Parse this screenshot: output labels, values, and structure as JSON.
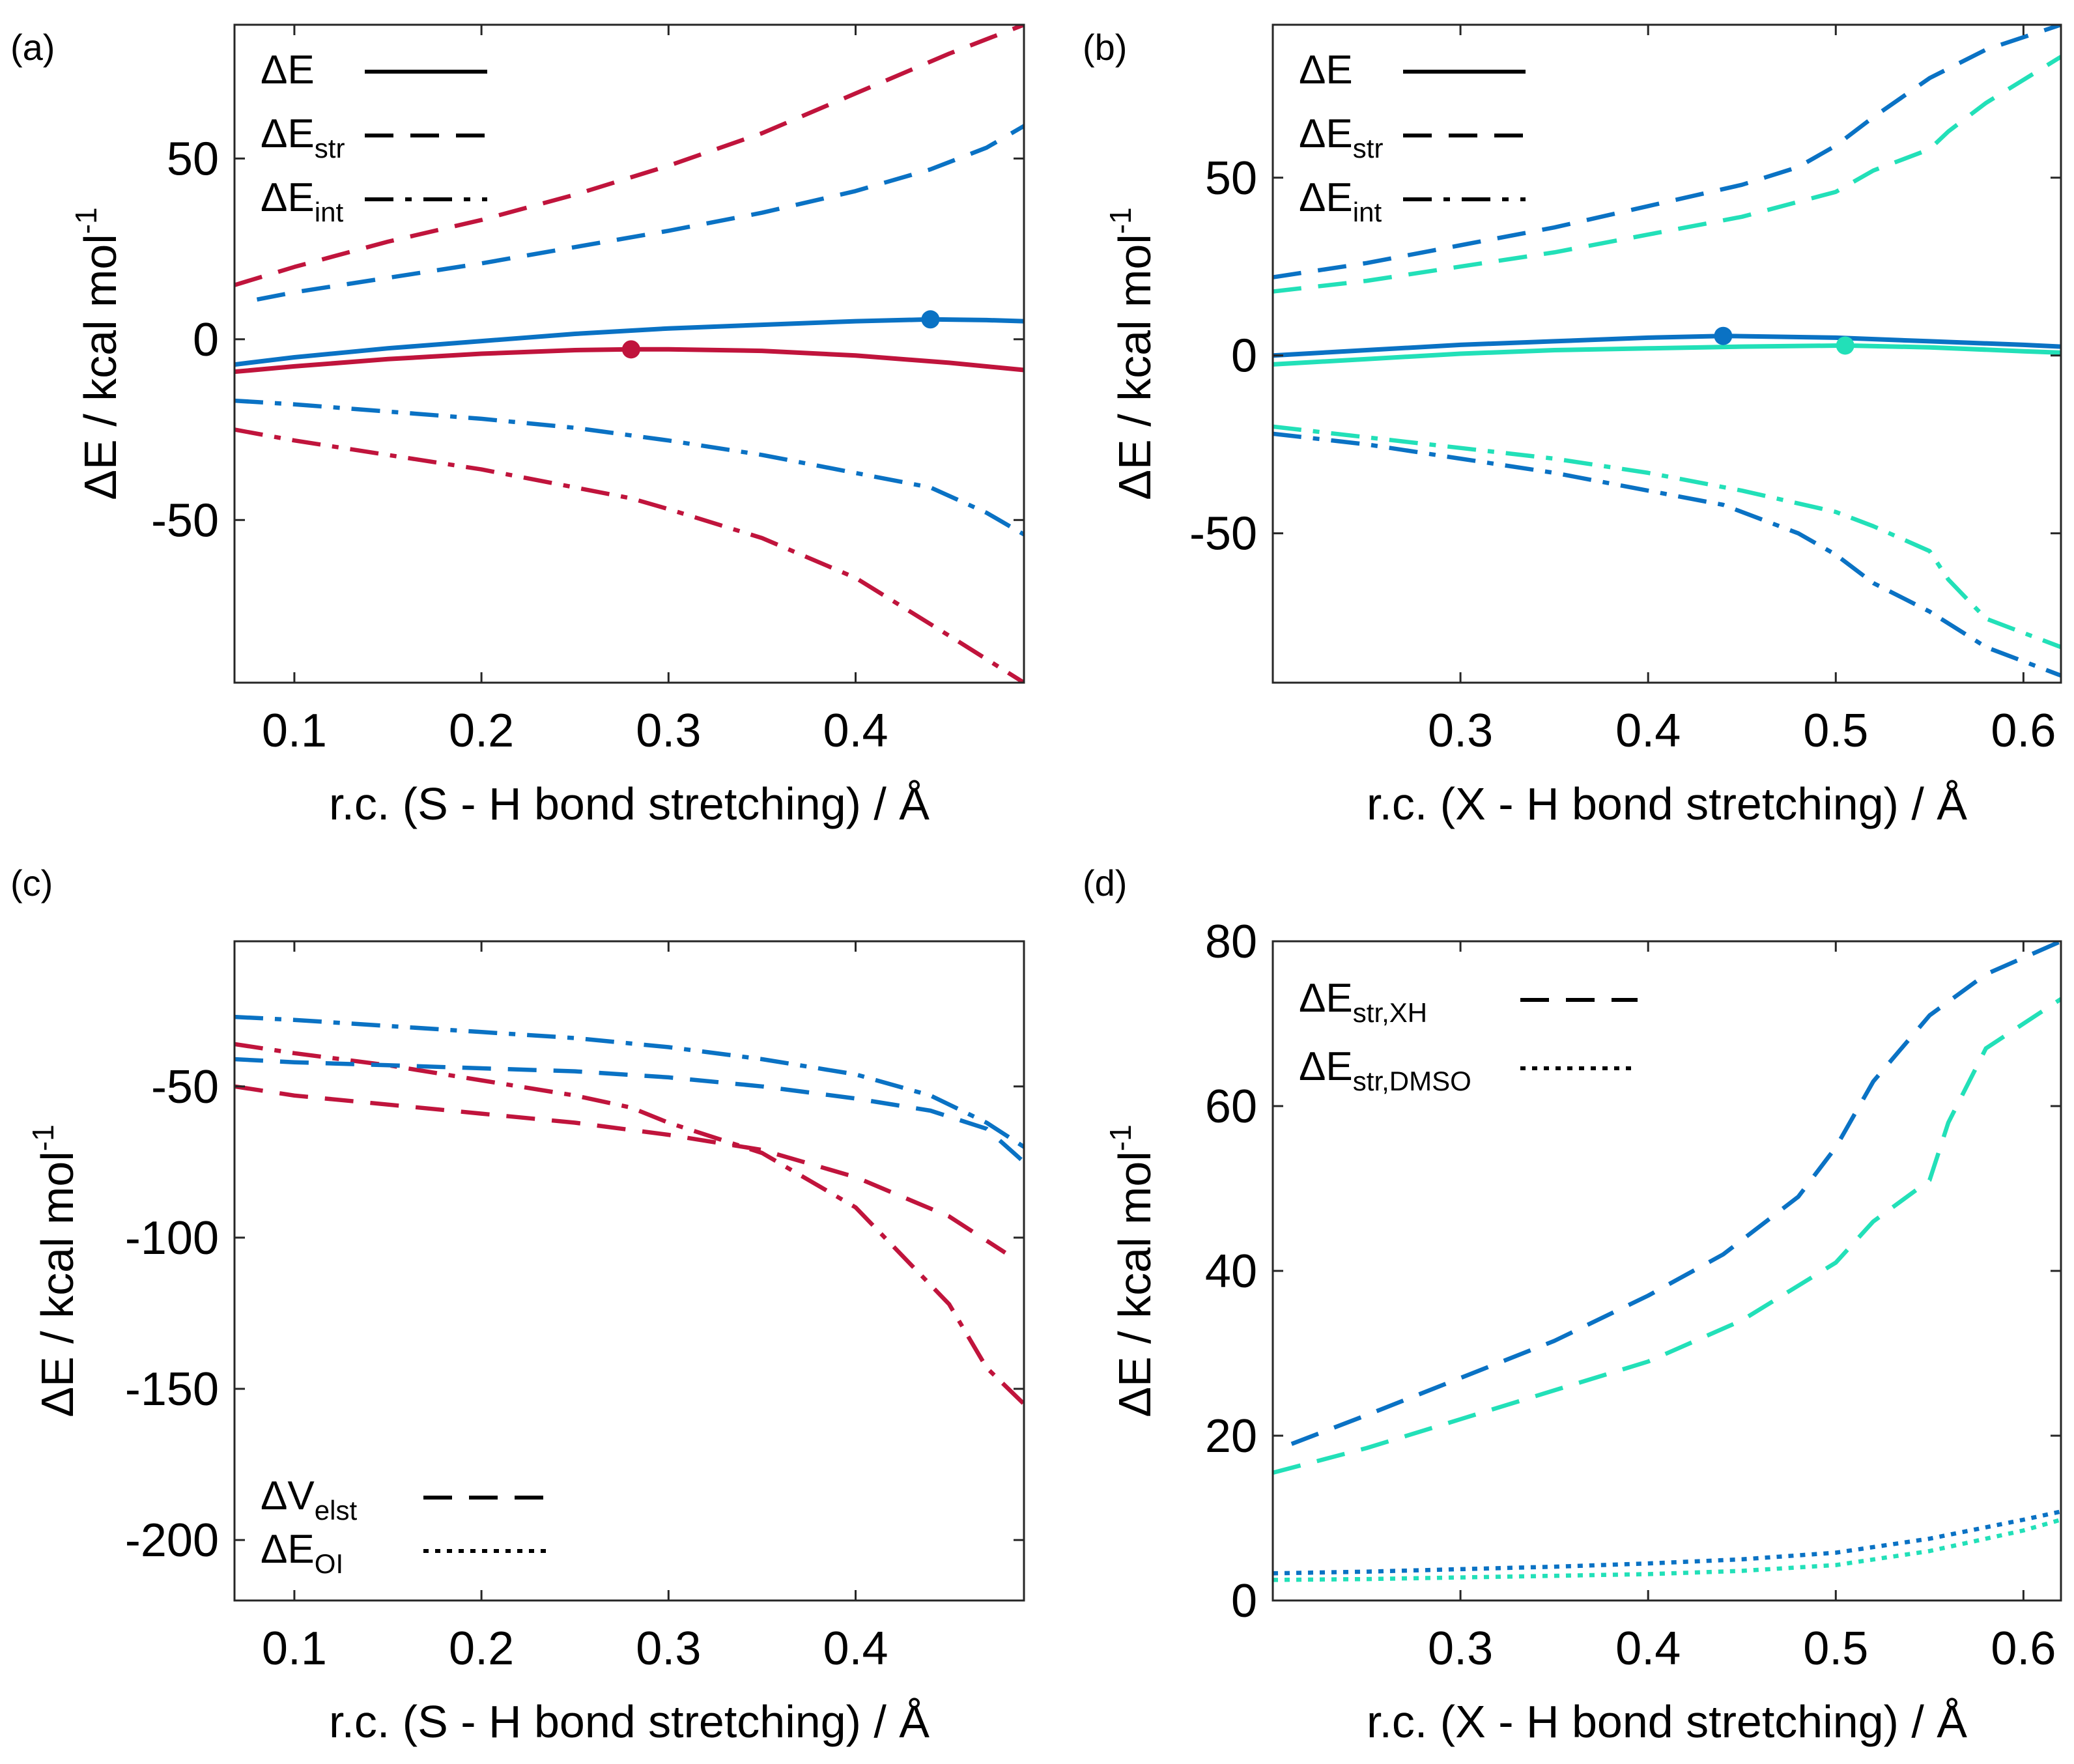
{
  "colors": {
    "red": "#C0143C",
    "blue": "#0A72C4",
    "cyan": "#22E0B8",
    "legend": "#000000",
    "axis": "#262626"
  },
  "chart_data": [
    {
      "id": "a",
      "panel_label": "(a)",
      "type": "line",
      "xlabel": "r.c. (S - H bond stretching) / Å",
      "ylabel": "ΔE / kcal mol",
      "ylabel_sup": "-1",
      "xlim": [
        0.068,
        0.49
      ],
      "ylim": [
        -95,
        87
      ],
      "xticks": [
        0.1,
        0.2,
        0.3,
        0.4
      ],
      "xtick_labels": [
        "0.1",
        "0.2",
        "0.3",
        "0.4"
      ],
      "yticks": [
        -50,
        0,
        50
      ],
      "ytick_labels": [
        "-50",
        "0",
        "50"
      ],
      "legend": {
        "position": "top-left",
        "entries": [
          {
            "main": "ΔE",
            "sub": "",
            "style": "solid"
          },
          {
            "main": "ΔE",
            "sub": "str",
            "style": "dashed"
          },
          {
            "main": "ΔE",
            "sub": "int",
            "style": "dashdot"
          }
        ]
      },
      "series": [
        {
          "color": "red",
          "style": "solid",
          "x": [
            0.068,
            0.1,
            0.15,
            0.2,
            0.25,
            0.28,
            0.3,
            0.35,
            0.4,
            0.45,
            0.49
          ],
          "y": [
            -9,
            -7.5,
            -5.5,
            -4,
            -3,
            -2.8,
            -2.8,
            -3.2,
            -4.5,
            -6.5,
            -8.5
          ]
        },
        {
          "color": "red",
          "style": "dashed",
          "x": [
            0.068,
            0.1,
            0.15,
            0.2,
            0.25,
            0.3,
            0.35,
            0.4,
            0.45,
            0.49
          ],
          "y": [
            15,
            20,
            27,
            33,
            40,
            48,
            57,
            68,
            79,
            87
          ]
        },
        {
          "color": "red",
          "style": "dashdot",
          "x": [
            0.068,
            0.1,
            0.15,
            0.2,
            0.25,
            0.28,
            0.3,
            0.35,
            0.4,
            0.45,
            0.49
          ],
          "y": [
            -25,
            -28,
            -32,
            -36,
            -41,
            -44,
            -47,
            -55,
            -66,
            -82,
            -95
          ]
        },
        {
          "color": "blue",
          "style": "solid",
          "x": [
            0.068,
            0.1,
            0.15,
            0.2,
            0.25,
            0.3,
            0.35,
            0.4,
            0.44,
            0.47,
            0.49
          ],
          "y": [
            -7,
            -5,
            -2.5,
            -0.5,
            1.5,
            3,
            4,
            5,
            5.5,
            5.3,
            5
          ]
        },
        {
          "color": "blue",
          "style": "dashed",
          "x": [
            0.08,
            0.1,
            0.15,
            0.2,
            0.25,
            0.3,
            0.35,
            0.4,
            0.44,
            0.47,
            0.49
          ],
          "y": [
            11,
            13,
            17,
            21,
            25.5,
            30,
            35,
            41,
            47,
            53,
            59
          ]
        },
        {
          "color": "blue",
          "style": "dashdot",
          "x": [
            0.068,
            0.1,
            0.15,
            0.2,
            0.25,
            0.3,
            0.35,
            0.4,
            0.44,
            0.47,
            0.49
          ],
          "y": [
            -17,
            -18,
            -20,
            -22,
            -24.5,
            -28,
            -32,
            -37,
            -41,
            -48,
            -54
          ]
        }
      ],
      "markers": [
        {
          "color": "red",
          "x": 0.28,
          "y": -2.8
        },
        {
          "color": "blue",
          "x": 0.44,
          "y": 5.5
        }
      ]
    },
    {
      "id": "b",
      "panel_label": "(b)",
      "type": "line",
      "xlabel": "r.c. (X - H bond stretching) / Å",
      "ylabel": "ΔE / kcal mol",
      "ylabel_sup": "-1",
      "xlim": [
        0.2,
        0.62
      ],
      "ylim": [
        -92,
        93
      ],
      "xticks": [
        0.3,
        0.4,
        0.5,
        0.6
      ],
      "xtick_labels": [
        "0.3",
        "0.4",
        "0.5",
        "0.6"
      ],
      "yticks": [
        -50,
        0,
        50
      ],
      "ytick_labels": [
        "-50",
        "0",
        "50"
      ],
      "legend": {
        "position": "top-left",
        "entries": [
          {
            "main": "ΔE",
            "sub": "",
            "style": "solid"
          },
          {
            "main": "ΔE",
            "sub": "str",
            "style": "dashed"
          },
          {
            "main": "ΔE",
            "sub": "int",
            "style": "dashdot"
          }
        ]
      },
      "series": [
        {
          "color": "blue",
          "style": "solid",
          "x": [
            0.2,
            0.25,
            0.3,
            0.35,
            0.4,
            0.44,
            0.5,
            0.55,
            0.6,
            0.62
          ],
          "y": [
            0,
            1.5,
            3,
            4,
            5,
            5.5,
            5,
            4,
            3,
            2.5
          ]
        },
        {
          "color": "cyan",
          "style": "solid",
          "x": [
            0.2,
            0.25,
            0.3,
            0.35,
            0.4,
            0.45,
            0.505,
            0.55,
            0.6,
            0.62
          ],
          "y": [
            -2.5,
            -1,
            0.5,
            1.5,
            2,
            2.5,
            2.8,
            2.3,
            1.2,
            0.8
          ]
        },
        {
          "color": "blue",
          "style": "dashed",
          "x": [
            0.2,
            0.25,
            0.3,
            0.35,
            0.4,
            0.45,
            0.48,
            0.5,
            0.52,
            0.55,
            0.58,
            0.62
          ],
          "y": [
            22,
            26,
            31,
            36,
            42,
            48,
            53,
            59,
            67,
            78,
            86,
            93
          ]
        },
        {
          "color": "cyan",
          "style": "dashed",
          "x": [
            0.2,
            0.25,
            0.3,
            0.35,
            0.4,
            0.45,
            0.5,
            0.52,
            0.55,
            0.56,
            0.58,
            0.62
          ],
          "y": [
            18,
            21,
            25,
            29,
            34,
            39,
            46,
            52,
            58,
            63,
            71,
            84
          ]
        },
        {
          "color": "blue",
          "style": "dashdot",
          "x": [
            0.2,
            0.25,
            0.3,
            0.35,
            0.4,
            0.44,
            0.48,
            0.5,
            0.52,
            0.55,
            0.58,
            0.62
          ],
          "y": [
            -22,
            -25,
            -29,
            -33,
            -38,
            -42,
            -50,
            -56,
            -64,
            -72,
            -82,
            -90
          ]
        },
        {
          "color": "cyan",
          "style": "dashdot",
          "x": [
            0.2,
            0.25,
            0.3,
            0.35,
            0.4,
            0.45,
            0.5,
            0.52,
            0.55,
            0.56,
            0.58,
            0.62
          ],
          "y": [
            -20,
            -23,
            -26,
            -29,
            -33,
            -38,
            -44,
            -48,
            -55,
            -63,
            -74,
            -82
          ]
        }
      ],
      "markers": [
        {
          "color": "blue",
          "x": 0.44,
          "y": 5.5
        },
        {
          "color": "cyan",
          "x": 0.505,
          "y": 2.8
        }
      ]
    },
    {
      "id": "c",
      "panel_label": "(c)",
      "type": "line",
      "xlabel": "r.c. (S - H bond stretching) / Å",
      "ylabel": "ΔE / kcal mol",
      "ylabel_sup": "-1",
      "xlim": [
        0.068,
        0.49
      ],
      "ylim": [
        -220,
        -2
      ],
      "xticks": [
        0.1,
        0.2,
        0.3,
        0.4
      ],
      "xtick_labels": [
        "0.1",
        "0.2",
        "0.3",
        "0.4"
      ],
      "yticks": [
        -200,
        -150,
        -100,
        -50
      ],
      "ytick_labels": [
        "-200",
        "-150",
        "-100",
        "-50"
      ],
      "legend": {
        "position": "bottom-left",
        "entries": [
          {
            "main": "ΔV",
            "sub": "elst",
            "style": "dashed"
          },
          {
            "main": "ΔE",
            "sub": "OI",
            "style": "dotted"
          }
        ]
      },
      "series": [
        {
          "color": "red",
          "style": "dashed",
          "x": [
            0.068,
            0.1,
            0.15,
            0.2,
            0.25,
            0.3,
            0.35,
            0.4,
            0.45,
            0.48
          ],
          "y": [
            -50,
            -53,
            -56,
            -59,
            -62,
            -66,
            -71,
            -80,
            -93,
            -105
          ]
        },
        {
          "color": "red",
          "style": "dashdot",
          "x": [
            0.068,
            0.1,
            0.15,
            0.2,
            0.25,
            0.28,
            0.3,
            0.35,
            0.4,
            0.45,
            0.47,
            0.49
          ],
          "y": [
            -36,
            -39,
            -43,
            -48,
            -53,
            -57,
            -62,
            -72,
            -90,
            -122,
            -143,
            -155
          ]
        },
        {
          "color": "blue",
          "style": "dashed",
          "x": [
            0.068,
            0.1,
            0.15,
            0.2,
            0.25,
            0.3,
            0.35,
            0.4,
            0.44,
            0.47,
            0.49
          ],
          "y": [
            -41,
            -42,
            -43,
            -44,
            -45,
            -47,
            -50,
            -54,
            -58,
            -64,
            -75
          ]
        },
        {
          "color": "blue",
          "style": "dashdot",
          "x": [
            0.068,
            0.1,
            0.15,
            0.2,
            0.25,
            0.3,
            0.35,
            0.4,
            0.44,
            0.47,
            0.49
          ],
          "y": [
            -27,
            -28,
            -30,
            -32,
            -34,
            -37,
            -41,
            -46,
            -53,
            -62,
            -70
          ]
        }
      ],
      "markers": []
    },
    {
      "id": "d",
      "panel_label": "(d)",
      "type": "line",
      "xlabel": "r.c. (X - H bond stretching) / Å",
      "ylabel": "ΔE / kcal mol",
      "ylabel_sup": "-1",
      "xlim": [
        0.2,
        0.62
      ],
      "ylim": [
        0,
        80
      ],
      "xticks": [
        0.3,
        0.4,
        0.5,
        0.6
      ],
      "xtick_labels": [
        "0.3",
        "0.4",
        "0.5",
        "0.6"
      ],
      "yticks": [
        0,
        20,
        40,
        60,
        80
      ],
      "ytick_labels": [
        "0",
        "20",
        "40",
        "60",
        "80"
      ],
      "legend": {
        "position": "top-left",
        "entries": [
          {
            "main": "ΔE",
            "sub": "str,XH",
            "style": "dashed"
          },
          {
            "main": "ΔE",
            "sub": "str,DMSO",
            "style": "dotted"
          }
        ]
      },
      "series": [
        {
          "color": "blue",
          "style": "dashed",
          "x": [
            0.21,
            0.25,
            0.3,
            0.35,
            0.4,
            0.44,
            0.48,
            0.5,
            0.52,
            0.55,
            0.58,
            0.62
          ],
          "y": [
            19,
            22.5,
            27,
            31.5,
            37,
            42,
            49,
            55,
            63,
            71,
            76,
            80
          ]
        },
        {
          "color": "cyan",
          "style": "dashed",
          "x": [
            0.2,
            0.25,
            0.3,
            0.35,
            0.4,
            0.45,
            0.5,
            0.52,
            0.55,
            0.56,
            0.58,
            0.62
          ],
          "y": [
            15.5,
            18.5,
            22,
            25.5,
            29,
            34,
            41,
            46,
            51,
            58,
            67,
            73
          ]
        },
        {
          "color": "blue",
          "style": "dotted",
          "x": [
            0.2,
            0.25,
            0.3,
            0.35,
            0.4,
            0.45,
            0.5,
            0.55,
            0.6,
            0.62
          ],
          "y": [
            3.3,
            3.5,
            3.8,
            4.1,
            4.5,
            5,
            5.8,
            7.5,
            9.8,
            10.8
          ]
        },
        {
          "color": "cyan",
          "style": "dotted",
          "x": [
            0.2,
            0.25,
            0.3,
            0.35,
            0.4,
            0.45,
            0.5,
            0.55,
            0.6,
            0.62
          ],
          "y": [
            2.5,
            2.6,
            2.8,
            3,
            3.2,
            3.6,
            4.3,
            6,
            8.5,
            9.8
          ]
        }
      ],
      "markers": []
    }
  ]
}
